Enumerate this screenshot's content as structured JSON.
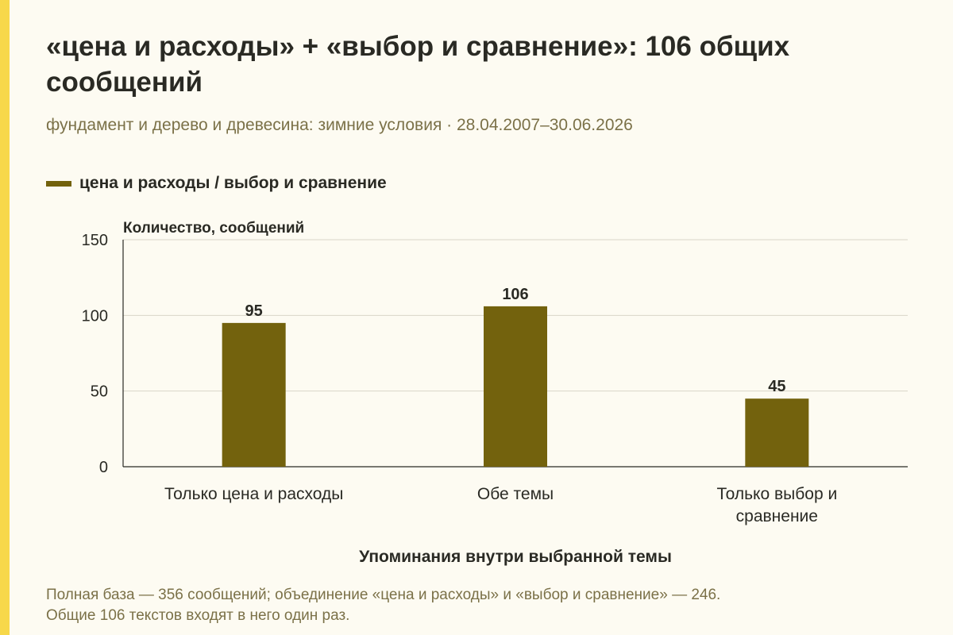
{
  "header": {
    "title": "«цена и расходы» + «выбор и сравнение»: 106 общих сообщений",
    "subtitle": "фундамент и дерево и древесина: зимние условия · 28.04.2007–30.06.2026"
  },
  "footnote": {
    "line1": "Полная база — 356 сообщений; объединение «цена и расходы» и «выбор и сравнение» — 246.",
    "line2": "Общие 106 текстов входят в него один раз."
  },
  "colors": {
    "accent_bar": "#f7d84a",
    "bar": "#73620d",
    "background": "#fdfbf2"
  },
  "chart_data": {
    "type": "bar",
    "categories": [
      [
        "Только цена и расходы"
      ],
      [
        "Обе темы"
      ],
      [
        "Только выбор и",
        "сравнение"
      ]
    ],
    "series": [
      {
        "name": "цена и расходы / выбор и сравнение",
        "values": [
          95,
          106,
          45
        ]
      }
    ],
    "data_labels": [
      "95",
      "106",
      "45"
    ],
    "ylabel": "Количество, сообщений",
    "xlabel": "Упоминания внутри выбранной темы",
    "ylim": [
      0,
      150
    ],
    "yticks": [
      0,
      50,
      100,
      150
    ],
    "grid": true,
    "legend": "top-left"
  }
}
